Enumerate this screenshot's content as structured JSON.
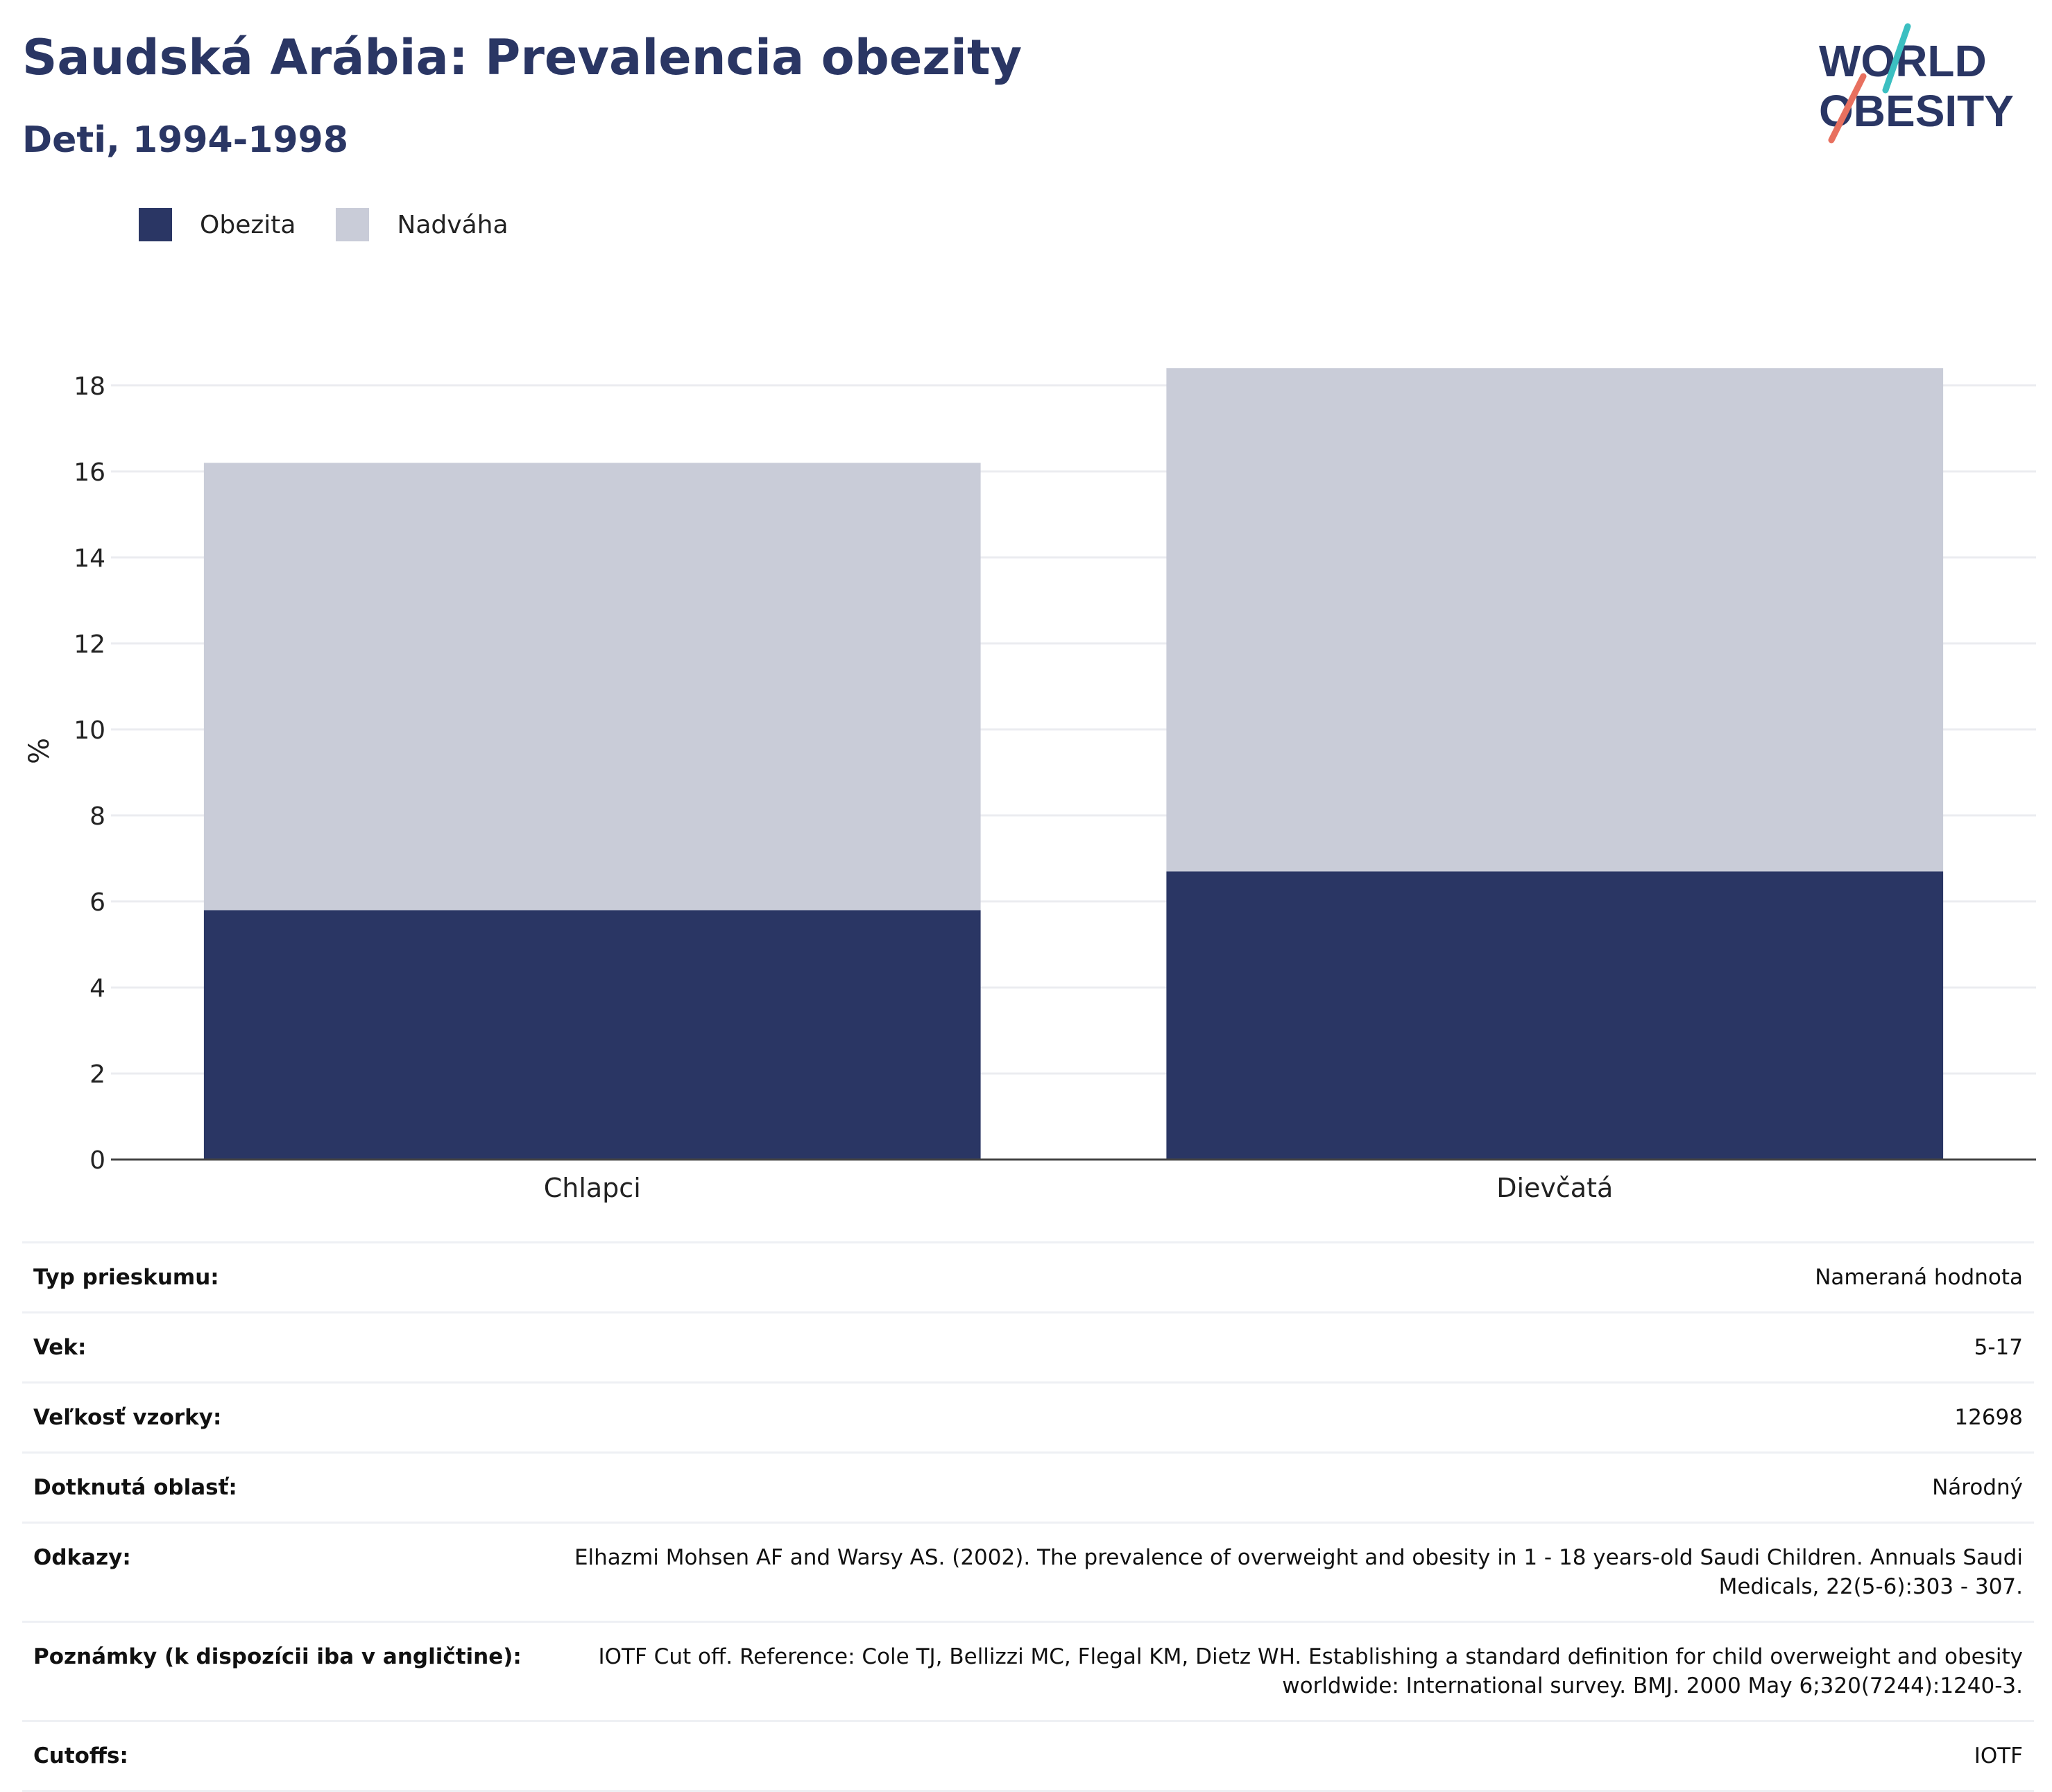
{
  "title": "Saudská Arábia: Prevalencia obezity",
  "subtitle": "Deti, 1994-1998",
  "logo": {
    "line1": "WORLD",
    "line2": "OBESITY",
    "accent_teal": "#3bbfc1",
    "accent_coral": "#e8705f"
  },
  "colors": {
    "obesity": "#2a3664",
    "overweight": "#c9ccd8",
    "text": "#2a3664"
  },
  "chart_data": {
    "type": "bar",
    "stacked": true,
    "categories": [
      "Chlapci",
      "Dievčatá"
    ],
    "series": [
      {
        "name": "Obezita",
        "values": [
          5.8,
          6.7
        ],
        "color": "#2a3664"
      },
      {
        "name": "Nadváha",
        "values": [
          10.4,
          11.7
        ],
        "color": "#c9ccd8"
      }
    ],
    "ylabel": "%",
    "ylim": [
      0,
      18.9
    ],
    "yticks": [
      0,
      2,
      4,
      6,
      8,
      10,
      12,
      14,
      16,
      18
    ],
    "grid": true,
    "legend_position": "top-left"
  },
  "meta": [
    {
      "label": "Typ prieskumu:",
      "value": "Nameraná hodnota"
    },
    {
      "label": "Vek:",
      "value": "5-17"
    },
    {
      "label": "Veľkosť vzorky:",
      "value": "12698"
    },
    {
      "label": "Dotknutá oblasť:",
      "value": "Národný"
    },
    {
      "label": "Odkazy:",
      "value": "Elhazmi Mohsen AF and Warsy AS. (2002). The prevalence of overweight and obesity in 1 - 18 years-old Saudi Children. Annuals Saudi Medicals, 22(5-6):303 - 307."
    },
    {
      "label": "Poznámky (k dispozícii iba v angličtine):",
      "value": "IOTF Cut off. Reference: Cole TJ, Bellizzi MC, Flegal KM, Dietz WH. Establishing a standard definition for child overweight and obesity worldwide: International survey. BMJ. 2000 May 6;320(7244):1240-3."
    },
    {
      "label": "Cutoffs:",
      "value": "IOTF"
    }
  ]
}
